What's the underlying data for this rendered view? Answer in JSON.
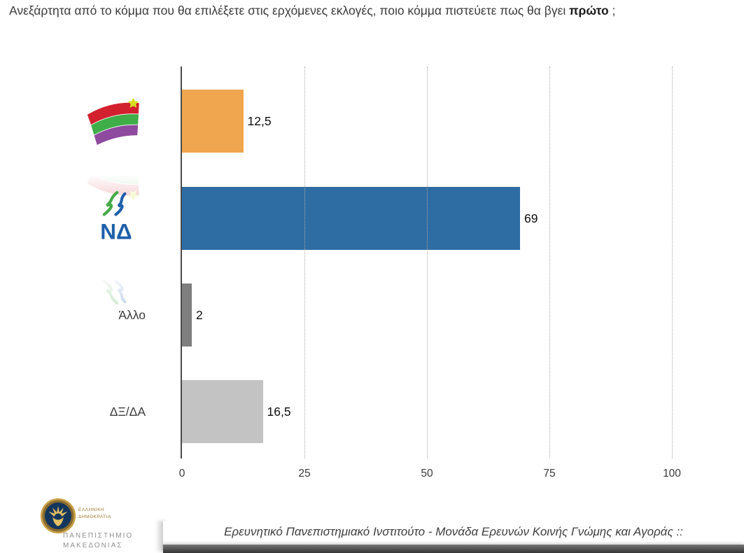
{
  "title": {
    "prefix": "Ανεξάρτητα από το κόμμα που θα επιλέξετε στις ερχόμενες εκλογές, ποιο κόμμα πιστεύετε πως θα βγει ",
    "bold": "πρώτο",
    "suffix": " ;"
  },
  "chart_data": {
    "type": "bar",
    "orientation": "horizontal",
    "title": "",
    "categories": [
      "ΣΥΡΙΖΑ",
      "ΝΔ",
      "Άλλο",
      "ΔΞ/ΔΑ"
    ],
    "values": [
      12.5,
      69,
      2,
      16.5
    ],
    "value_labels": [
      "12,5",
      "69",
      "2",
      "16,5"
    ],
    "bar_colors": [
      "#F0A64F",
      "#2E6DA4",
      "#7F7F7F",
      "#C3C3C3"
    ],
    "xlim": [
      0,
      100
    ],
    "xticks": [
      "0",
      "25",
      "50",
      "75",
      "100"
    ],
    "grid": "dotted-vertical",
    "legend": "none"
  },
  "logos": {
    "syriza": "syriza-flag-logo",
    "nd_text": "ΝΔ"
  },
  "footer": {
    "seal_caption_line1": "ΕΛΛΗΝΙΚΗ",
    "seal_caption_line2": "ΔΗΜΟΚΡΑΤΙΑ",
    "university_line1": "ΠΑΝΕΠΙΣΤΗΜΙΟ",
    "university_line2": "ΜΑΚΕΔΟΝΙΑΣ",
    "institute_text": "Ερευνητικό Πανεπιστημιακό Ινστιτούτο - Μονάδα Ερευνών Κοινής Γνώμης και Αγοράς ::"
  }
}
